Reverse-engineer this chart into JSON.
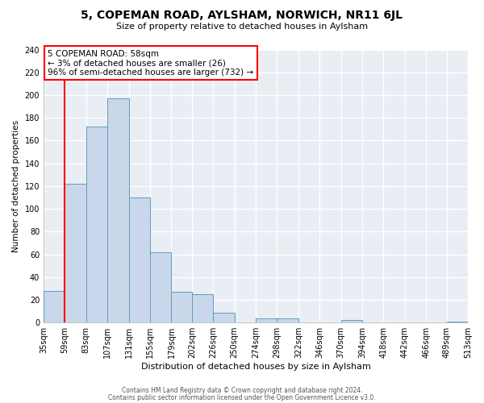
{
  "title": "5, COPEMAN ROAD, AYLSHAM, NORWICH, NR11 6JL",
  "subtitle": "Size of property relative to detached houses in Aylsham",
  "xlabel": "Distribution of detached houses by size in Aylsham",
  "ylabel": "Number of detached properties",
  "bar_color": "#c8d8ea",
  "bar_edge_color": "#6699bb",
  "bin_edges": [
    35,
    59,
    83,
    107,
    131,
    155,
    179,
    202,
    226,
    250,
    274,
    298,
    322,
    346,
    370,
    394,
    418,
    442,
    466,
    489,
    513
  ],
  "bin_labels": [
    "35sqm",
    "59sqm",
    "83sqm",
    "107sqm",
    "131sqm",
    "155sqm",
    "179sqm",
    "202sqm",
    "226sqm",
    "250sqm",
    "274sqm",
    "298sqm",
    "322sqm",
    "346sqm",
    "370sqm",
    "394sqm",
    "418sqm",
    "442sqm",
    "466sqm",
    "489sqm",
    "513sqm"
  ],
  "counts": [
    28,
    122,
    172,
    197,
    110,
    62,
    27,
    25,
    9,
    0,
    4,
    4,
    0,
    0,
    2,
    0,
    0,
    0,
    0,
    1
  ],
  "vline_x": 59,
  "annotation_title": "5 COPEMAN ROAD: 58sqm",
  "annotation_line1": "← 3% of detached houses are smaller (26)",
  "annotation_line2": "96% of semi-detached houses are larger (732) →",
  "annotation_box_color": "white",
  "annotation_box_edge_color": "red",
  "vline_color": "red",
  "ylim": [
    0,
    240
  ],
  "yticks": [
    0,
    20,
    40,
    60,
    80,
    100,
    120,
    140,
    160,
    180,
    200,
    220,
    240
  ],
  "footer1": "Contains HM Land Registry data © Crown copyright and database right 2024.",
  "footer2": "Contains public sector information licensed under the Open Government Licence v3.0.",
  "background_color": "#ffffff",
  "plot_bg_color": "#e8eef4"
}
